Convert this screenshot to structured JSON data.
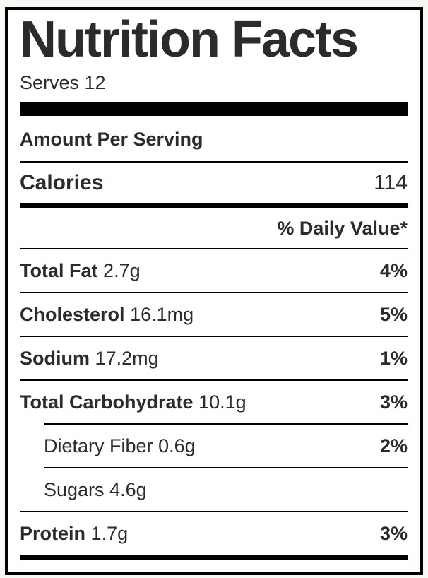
{
  "page": {
    "background_color": "#f7f7f4"
  },
  "label": {
    "title": "Nutrition Facts",
    "serving_statement": "Serves 12",
    "amount_per_serving_label": "Amount Per Serving",
    "calories_label": "Calories",
    "calories_value": "114",
    "daily_value_header": "% Daily Value*",
    "nutrients": [
      {
        "name": "Total Fat",
        "amount": "2.7g",
        "daily_value": "4%",
        "indented": false
      },
      {
        "name": "Cholesterol",
        "amount": "16.1mg",
        "daily_value": "5%",
        "indented": false
      },
      {
        "name": "Sodium",
        "amount": "17.2mg",
        "daily_value": "1%",
        "indented": false
      },
      {
        "name": "Total Carbohydrate",
        "amount": "10.1g",
        "daily_value": "3%",
        "indented": false
      },
      {
        "name": "Dietary Fiber",
        "amount": "0.6g",
        "daily_value": "2%",
        "indented": true
      },
      {
        "name": "Sugars",
        "amount": "4.6g",
        "daily_value": "",
        "indented": true
      },
      {
        "name": "Protein",
        "amount": "1.7g",
        "daily_value": "3%",
        "indented": false
      }
    ],
    "colors": {
      "text": "#2b2b2b",
      "rule": "#000000",
      "label_background": "#ffffff",
      "page_background": "#f7f7f4"
    }
  }
}
